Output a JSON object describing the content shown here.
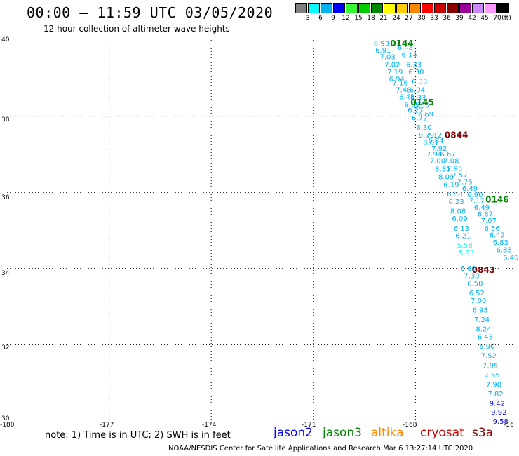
{
  "header": {
    "title": "00:00 – 11:59 UTC 03/05/2020",
    "subtitle": "12 hour collection of altimeter wave heights"
  },
  "legend": {
    "unit": "(ft)",
    "items": [
      {
        "label": "3",
        "color": "#7f7f7f"
      },
      {
        "label": "6",
        "color": "#00ffff"
      },
      {
        "label": "9",
        "color": "#00b0f0"
      },
      {
        "label": "12",
        "color": "#0000ff"
      },
      {
        "label": "15",
        "color": "#33ff33"
      },
      {
        "label": "18",
        "color": "#00cc00"
      },
      {
        "label": "21",
        "color": "#008800"
      },
      {
        "label": "24",
        "color": "#ffff00"
      },
      {
        "label": "27",
        "color": "#ffcc00"
      },
      {
        "label": "30",
        "color": "#ff8800"
      },
      {
        "label": "33",
        "color": "#ff0000"
      },
      {
        "label": "36",
        "color": "#cc0000"
      },
      {
        "label": "39",
        "color": "#880000"
      },
      {
        "label": "42",
        "color": "#990099"
      },
      {
        "label": "45",
        "color": "#cc88ff"
      },
      {
        "label": "70",
        "color": "#ff99ff"
      },
      {
        "label": "",
        "color": "#000000"
      }
    ]
  },
  "axes": {
    "lat_labels": [
      "40",
      "38",
      "36",
      "34",
      "32",
      "30"
    ],
    "lon_labels": [
      "-180",
      "-177",
      "-174",
      "-171",
      "-168",
      "-16"
    ]
  },
  "chart_data": {
    "type": "scatter",
    "xlim": [
      -180,
      -165
    ],
    "ylim": [
      30,
      40
    ],
    "grid": true,
    "time_labels": [
      {
        "text": "0144",
        "lon": -168.4,
        "lat": 39.9,
        "color": "#008800"
      },
      {
        "text": "0145",
        "lon": -167.8,
        "lat": 38.35,
        "color": "#008800"
      },
      {
        "text": "0844",
        "lon": -166.8,
        "lat": 37.5,
        "color": "#880000"
      },
      {
        "text": "0146",
        "lon": -165.6,
        "lat": 35.8,
        "color": "#008800"
      },
      {
        "text": "0843",
        "lon": -166.0,
        "lat": 33.95,
        "color": "#880000"
      }
    ],
    "points": [
      {
        "text": "6.93",
        "lon": -169.0,
        "lat": 39.9,
        "color": "#00b0f0"
      },
      {
        "text": "6.48",
        "lon": -168.3,
        "lat": 39.8,
        "color": "#00b0f0"
      },
      {
        "text": "6.91",
        "lon": -168.95,
        "lat": 39.72,
        "color": "#00b0f0"
      },
      {
        "text": "6.14",
        "lon": -168.18,
        "lat": 39.6,
        "color": "#00b0f0"
      },
      {
        "text": "7.03",
        "lon": -168.82,
        "lat": 39.55,
        "color": "#00b0f0"
      },
      {
        "text": "7.02",
        "lon": -168.68,
        "lat": 39.35,
        "color": "#00b0f0"
      },
      {
        "text": "6.33",
        "lon": -168.05,
        "lat": 39.35,
        "color": "#00b0f0"
      },
      {
        "text": "7.19",
        "lon": -168.6,
        "lat": 39.15,
        "color": "#00b0f0"
      },
      {
        "text": "6.30",
        "lon": -167.98,
        "lat": 39.15,
        "color": "#00b0f0"
      },
      {
        "text": "6.94",
        "lon": -168.55,
        "lat": 38.97,
        "color": "#00b0f0"
      },
      {
        "text": "6.33",
        "lon": -167.88,
        "lat": 38.9,
        "color": "#00b0f0"
      },
      {
        "text": "7.16",
        "lon": -168.45,
        "lat": 38.87,
        "color": "#00b0f0"
      },
      {
        "text": "7.48",
        "lon": -168.35,
        "lat": 38.68,
        "color": "#00b0f0"
      },
      {
        "text": "6.94",
        "lon": -167.95,
        "lat": 38.68,
        "color": "#00b0f0"
      },
      {
        "text": "6.45",
        "lon": -168.25,
        "lat": 38.5,
        "color": "#00b0f0"
      },
      {
        "text": "6.33",
        "lon": -167.92,
        "lat": 38.48,
        "color": "#00b0f0"
      },
      {
        "text": "6.89",
        "lon": -168.1,
        "lat": 38.3,
        "color": "#00b0f0"
      },
      {
        "text": "6.55",
        "lon": -167.82,
        "lat": 38.28,
        "color": "#00b0f0"
      },
      {
        "text": "6.27",
        "lon": -168.0,
        "lat": 38.15,
        "color": "#00b0f0"
      },
      {
        "text": "6.69",
        "lon": -167.7,
        "lat": 38.05,
        "color": "#00b0f0"
      },
      {
        "text": "6.72",
        "lon": -167.88,
        "lat": 37.95,
        "color": "#00b0f0"
      },
      {
        "text": "6.30",
        "lon": -167.75,
        "lat": 37.7,
        "color": "#00b0f0"
      },
      {
        "text": "8.79",
        "lon": -167.68,
        "lat": 37.5,
        "color": "#00b0f0"
      },
      {
        "text": "7.12",
        "lon": -167.45,
        "lat": 37.5,
        "color": "#00b0f0"
      },
      {
        "text": "6.84",
        "lon": -167.4,
        "lat": 37.35,
        "color": "#00b0f0"
      },
      {
        "text": "8.01",
        "lon": -167.55,
        "lat": 37.3,
        "color": "#00b0f0"
      },
      {
        "text": "7.92",
        "lon": -167.3,
        "lat": 37.15,
        "color": "#00b0f0"
      },
      {
        "text": "7.94",
        "lon": -167.45,
        "lat": 37.0,
        "color": "#00b0f0"
      },
      {
        "text": "6.67",
        "lon": -167.05,
        "lat": 37.0,
        "color": "#00b0f0"
      },
      {
        "text": "7.00",
        "lon": -167.35,
        "lat": 36.82,
        "color": "#00b0f0"
      },
      {
        "text": "7.08",
        "lon": -166.95,
        "lat": 36.82,
        "color": "#00b0f0"
      },
      {
        "text": "8.51",
        "lon": -167.2,
        "lat": 36.6,
        "color": "#00b0f0"
      },
      {
        "text": "7.95",
        "lon": -166.85,
        "lat": 36.62,
        "color": "#00b0f0"
      },
      {
        "text": "8.09",
        "lon": -167.1,
        "lat": 36.4,
        "color": "#00b0f0"
      },
      {
        "text": "7.57",
        "lon": -166.7,
        "lat": 36.45,
        "color": "#00b0f0"
      },
      {
        "text": "7.75",
        "lon": -166.55,
        "lat": 36.27,
        "color": "#00b0f0"
      },
      {
        "text": "6.19",
        "lon": -166.95,
        "lat": 36.2,
        "color": "#00b0f0"
      },
      {
        "text": "6.49",
        "lon": -166.4,
        "lat": 36.1,
        "color": "#00b0f0"
      },
      {
        "text": "6.88",
        "lon": -166.85,
        "lat": 35.95,
        "color": "#00b0f0"
      },
      {
        "text": "6.90",
        "lon": -166.25,
        "lat": 35.93,
        "color": "#00b0f0"
      },
      {
        "text": "6.23",
        "lon": -166.8,
        "lat": 35.75,
        "color": "#00b0f0"
      },
      {
        "text": "7.17",
        "lon": -166.2,
        "lat": 35.77,
        "color": "#00b0f0"
      },
      {
        "text": "6.49",
        "lon": -166.05,
        "lat": 35.6,
        "color": "#00b0f0"
      },
      {
        "text": "8.08",
        "lon": -166.75,
        "lat": 35.5,
        "color": "#00b0f0"
      },
      {
        "text": "6.87",
        "lon": -165.95,
        "lat": 35.42,
        "color": "#00b0f0"
      },
      {
        "text": "6.09",
        "lon": -166.7,
        "lat": 35.3,
        "color": "#00b0f0"
      },
      {
        "text": "7.07",
        "lon": -165.85,
        "lat": 35.25,
        "color": "#00b0f0"
      },
      {
        "text": "6.13",
        "lon": -166.65,
        "lat": 35.05,
        "color": "#00b0f0"
      },
      {
        "text": "6.56",
        "lon": -165.75,
        "lat": 35.05,
        "color": "#00b0f0"
      },
      {
        "text": "6.21",
        "lon": -166.6,
        "lat": 34.85,
        "color": "#00b0f0"
      },
      {
        "text": "6.42",
        "lon": -165.6,
        "lat": 34.87,
        "color": "#00b0f0"
      },
      {
        "text": "5.58",
        "lon": -166.55,
        "lat": 34.6,
        "color": "#00ffff"
      },
      {
        "text": "6.83",
        "lon": -165.5,
        "lat": 34.68,
        "color": "#00b0f0"
      },
      {
        "text": "5.93",
        "lon": -166.5,
        "lat": 34.4,
        "color": "#00ffff"
      },
      {
        "text": "6.83",
        "lon": -165.4,
        "lat": 34.48,
        "color": "#00b0f0"
      },
      {
        "text": "6.46",
        "lon": -165.2,
        "lat": 34.28,
        "color": "#00b0f0"
      },
      {
        "text": "6.60",
        "lon": -166.45,
        "lat": 34.0,
        "color": "#00b0f0"
      },
      {
        "text": "7.39",
        "lon": -166.35,
        "lat": 33.8,
        "color": "#00b0f0"
      },
      {
        "text": "6.50",
        "lon": -166.25,
        "lat": 33.6,
        "color": "#00b0f0"
      },
      {
        "text": "6.52",
        "lon": -166.2,
        "lat": 33.35,
        "color": "#00b0f0"
      },
      {
        "text": "7.00",
        "lon": -166.15,
        "lat": 33.15,
        "color": "#00b0f0"
      },
      {
        "text": "6.93",
        "lon": -166.1,
        "lat": 32.9,
        "color": "#00b0f0"
      },
      {
        "text": "7.24",
        "lon": -166.05,
        "lat": 32.65,
        "color": "#00b0f0"
      },
      {
        "text": "8.24",
        "lon": -166.0,
        "lat": 32.4,
        "color": "#00b0f0"
      },
      {
        "text": "6.43",
        "lon": -165.95,
        "lat": 32.2,
        "color": "#00b0f0"
      },
      {
        "text": "6.90",
        "lon": -165.9,
        "lat": 31.95,
        "color": "#00b0f0"
      },
      {
        "text": "7.52",
        "lon": -165.85,
        "lat": 31.7,
        "color": "#00b0f0"
      },
      {
        "text": "7.95",
        "lon": -165.8,
        "lat": 31.45,
        "color": "#00b0f0"
      },
      {
        "text": "7.65",
        "lon": -165.75,
        "lat": 31.2,
        "color": "#00b0f0"
      },
      {
        "text": "7.90",
        "lon": -165.7,
        "lat": 30.95,
        "color": "#00b0f0"
      },
      {
        "text": "7.82",
        "lon": -165.65,
        "lat": 30.7,
        "color": "#00b0f0"
      },
      {
        "text": "9.42",
        "lon": -165.6,
        "lat": 30.45,
        "color": "#0000ff"
      },
      {
        "text": "9.92",
        "lon": -165.55,
        "lat": 30.22,
        "color": "#0000ff"
      },
      {
        "text": "9.58",
        "lon": -165.5,
        "lat": 29.98,
        "color": "#0000ff"
      }
    ]
  },
  "footer": {
    "note": "note: 1) Time is in UTC; 2) SWH is in feet",
    "satellites": [
      {
        "name": "jason2",
        "color": "#0000ff"
      },
      {
        "name": "jason3",
        "color": "#008800"
      },
      {
        "name": "altika",
        "color": "#ff8800"
      },
      {
        "name": "cryosat",
        "color": "#cc0000"
      },
      {
        "name": "s3a",
        "color": "#880000"
      }
    ],
    "credit": "NOAA/NESDIS Center for Satellite Applications and Research   Mar  6 13:27:14 UTC 2020"
  }
}
